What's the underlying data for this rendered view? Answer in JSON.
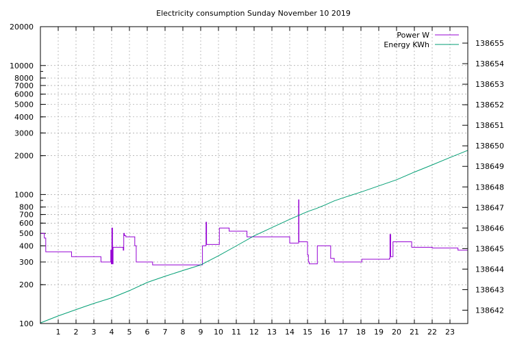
{
  "chart_data": {
    "type": "line",
    "title": "Electricity consumption Sunday November 10 2019",
    "xlabel": "",
    "ylabel": "",
    "y2label": "",
    "grid": true,
    "legend_position": "top-right",
    "x_ticks": [
      1,
      2,
      3,
      4,
      5,
      6,
      7,
      8,
      9,
      10,
      11,
      12,
      13,
      14,
      15,
      16,
      17,
      18,
      19,
      20,
      21,
      22,
      23
    ],
    "xlim": [
      0,
      24
    ],
    "y_scale": "log",
    "ylim": [
      100,
      20000
    ],
    "y_ticks": [
      100,
      200,
      300,
      400,
      500,
      600,
      700,
      800,
      1000,
      2000,
      3000,
      4000,
      5000,
      6000,
      7000,
      8000,
      10000,
      20000
    ],
    "y2_scale": "linear",
    "y2lim": [
      138641.35,
      138655.8
    ],
    "y2_ticks": [
      138642,
      138643,
      138644,
      138645,
      138646,
      138647,
      138648,
      138649,
      138650,
      138651,
      138652,
      138653,
      138654,
      138655
    ],
    "series": [
      {
        "name": "Power W",
        "axis": "y",
        "color": "#9400d3",
        "x": [
          0,
          0.22,
          0.22,
          0.3,
          0.3,
          1.75,
          1.75,
          3.4,
          3.4,
          3.95,
          3.95,
          3.98,
          3.98,
          4.01,
          4.01,
          4.05,
          4.05,
          4.08,
          4.08,
          4.1,
          4.1,
          4.65,
          4.65,
          4.68,
          4.68,
          4.72,
          4.72,
          4.8,
          4.8,
          5.3,
          5.3,
          5.38,
          5.38,
          6.3,
          6.3,
          9.1,
          9.1,
          9.3,
          9.3,
          9.33,
          9.33,
          9.38,
          9.38,
          10.05,
          10.05,
          10.6,
          10.6,
          11.6,
          11.6,
          14,
          14,
          14.5,
          14.5,
          14.52,
          14.52,
          14.55,
          14.55,
          15.0,
          15.0,
          15.05,
          15.05,
          15.1,
          15.1,
          15.55,
          15.55,
          16.3,
          16.3,
          16.5,
          16.5,
          18.05,
          18.05,
          19.6,
          19.6,
          19.63,
          19.63,
          19.67,
          19.67,
          19.8,
          19.8,
          20.85,
          20.85,
          22.0,
          22.0,
          23.45,
          23.45,
          24.0
        ],
        "y": [
          500,
          500,
          460,
          460,
          360,
          360,
          330,
          330,
          300,
          300,
          370,
          370,
          290,
          290,
          550,
          550,
          290,
          290,
          390,
          390,
          390,
          390,
          370,
          370,
          500,
          500,
          480,
          480,
          470,
          470,
          400,
          400,
          300,
          300,
          285,
          285,
          400,
          400,
          610,
          610,
          410,
          410,
          410,
          410,
          550,
          550,
          520,
          520,
          470,
          470,
          420,
          420,
          910,
          910,
          430,
          430,
          430,
          430,
          340,
          340,
          300,
          300,
          290,
          290,
          400,
          400,
          320,
          320,
          300,
          300,
          315,
          315,
          320,
          320,
          490,
          490,
          330,
          330,
          430,
          430,
          390,
          390,
          385,
          385,
          370,
          370
        ]
      },
      {
        "name": "Energy KWh",
        "axis": "y2",
        "color": "#009e73",
        "x": [
          0,
          1,
          2,
          3,
          4,
          5,
          6,
          7,
          8,
          9,
          10,
          11,
          12,
          13,
          14,
          15,
          15.5,
          16,
          16.5,
          17,
          18,
          19,
          20,
          21,
          22,
          23,
          24
        ],
        "y": [
          138641.38,
          138641.72,
          138642.03,
          138642.33,
          138642.6,
          138642.95,
          138643.35,
          138643.65,
          138643.93,
          138644.2,
          138644.65,
          138645.13,
          138645.62,
          138646.02,
          138646.42,
          138646.8,
          138646.95,
          138647.13,
          138647.32,
          138647.47,
          138647.75,
          138648.05,
          138648.35,
          138648.72,
          138649.07,
          138649.43,
          138649.78
        ]
      }
    ]
  }
}
